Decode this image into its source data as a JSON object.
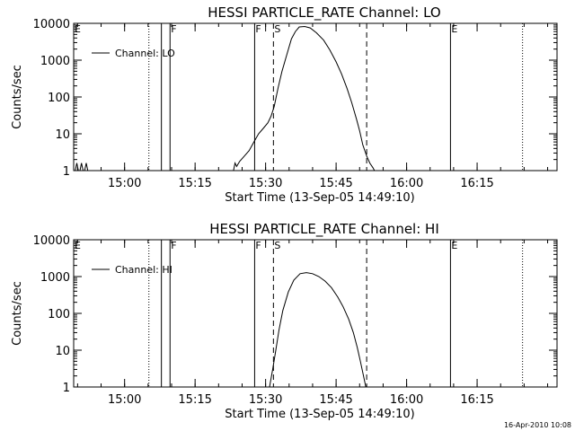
{
  "footer_stamp": "16-Apr-2010 10:08",
  "chart_data": [
    {
      "type": "line",
      "title": "HESSI PARTICLE_RATE Channel: LO",
      "xlabel": "Start Time (13-Sep-05 14:49:10)",
      "ylabel": "Counts/sec",
      "y_scale": "log",
      "ylim": [
        1,
        10000
      ],
      "xlim": [
        "14:49:10",
        "16:32:00"
      ],
      "x_ticks": [
        "15:00",
        "15:15",
        "15:30",
        "15:45",
        "16:00",
        "16:15"
      ],
      "y_ticks": [
        "1",
        "10",
        "100",
        "1000",
        "10000"
      ],
      "legend": {
        "label": "Channel: LO",
        "placement": "top-left"
      },
      "markers": [
        {
          "label": "E",
          "time": "14:49:10",
          "style": "solid"
        },
        {
          "label": "",
          "time": "15:05:10",
          "style": "dotted"
        },
        {
          "label": "",
          "time": "15:07:50",
          "style": "solid"
        },
        {
          "label": "F",
          "time": "15:09:40",
          "style": "solid"
        },
        {
          "label": "F",
          "time": "15:27:40",
          "style": "solid"
        },
        {
          "label": "S",
          "time": "15:31:40",
          "style": "dashed"
        },
        {
          "label": "",
          "time": "15:51:30",
          "style": "dashed"
        },
        {
          "label": "E",
          "time": "16:09:20",
          "style": "solid"
        },
        {
          "label": "",
          "time": "16:24:40",
          "style": "dotted"
        }
      ],
      "series": [
        {
          "x": [
            "14:49:30",
            "14:49:50",
            "14:50:10",
            "14:50:30",
            "14:50:50",
            "14:51:10",
            "14:51:30",
            "14:51:50",
            "14:52:10",
            "15:23:10",
            "15:23:30",
            "15:23:50",
            "15:24:30",
            "15:25:30",
            "15:26:30",
            "15:27:30",
            "15:28:30",
            "15:29:30",
            "15:30:30",
            "15:31:10",
            "15:31:50",
            "15:32:40",
            "15:33:30",
            "15:34:30",
            "15:35:30",
            "15:36:20",
            "15:37:10",
            "15:38:20",
            "15:39:30",
            "15:40:50",
            "15:42:20",
            "15:43:40",
            "15:45:00",
            "15:46:10",
            "15:47:20",
            "15:48:20",
            "15:49:20",
            "15:50:00",
            "15:50:40",
            "15:51:30",
            "15:52:10",
            "15:52:50",
            "15:53:10"
          ],
          "y": [
            1,
            1.6,
            1,
            1,
            1.6,
            1,
            1,
            1.6,
            1,
            1,
            1.6,
            1.3,
            1.8,
            2.5,
            3.5,
            6,
            10,
            14,
            20,
            30,
            55,
            180,
            500,
            1400,
            3800,
            6000,
            8000,
            8200,
            7500,
            5500,
            3500,
            1900,
            900,
            420,
            170,
            70,
            25,
            12,
            5,
            2.5,
            1.6,
            1.2,
            1
          ]
        }
      ]
    },
    {
      "type": "line",
      "title": "HESSI PARTICLE_RATE Channel: HI",
      "xlabel": "Start Time (13-Sep-05 14:49:10)",
      "ylabel": "Counts/sec",
      "y_scale": "log",
      "ylim": [
        1,
        10000
      ],
      "xlim": [
        "14:49:10",
        "16:32:00"
      ],
      "x_ticks": [
        "15:00",
        "15:15",
        "15:30",
        "15:45",
        "16:00",
        "16:15"
      ],
      "y_ticks": [
        "1",
        "10",
        "100",
        "1000",
        "10000"
      ],
      "legend": {
        "label": "Channel: HI",
        "placement": "top-left"
      },
      "markers": [
        {
          "label": "E",
          "time": "14:49:10",
          "style": "solid"
        },
        {
          "label": "",
          "time": "15:05:10",
          "style": "dotted"
        },
        {
          "label": "",
          "time": "15:07:50",
          "style": "solid"
        },
        {
          "label": "F",
          "time": "15:09:40",
          "style": "solid"
        },
        {
          "label": "F",
          "time": "15:27:40",
          "style": "solid"
        },
        {
          "label": "S",
          "time": "15:31:40",
          "style": "dashed"
        },
        {
          "label": "",
          "time": "15:51:30",
          "style": "dashed"
        },
        {
          "label": "E",
          "time": "16:09:20",
          "style": "solid"
        },
        {
          "label": "",
          "time": "16:24:40",
          "style": "dotted"
        }
      ],
      "series": [
        {
          "x": [
            "15:30:50",
            "15:31:30",
            "15:32:10",
            "15:32:50",
            "15:33:40",
            "15:34:50",
            "15:36:00",
            "15:37:20",
            "15:38:40",
            "15:40:00",
            "15:41:20",
            "15:42:40",
            "15:44:00",
            "15:45:20",
            "15:46:30",
            "15:47:40",
            "15:48:40",
            "15:49:30",
            "15:50:10",
            "15:50:50",
            "15:51:20"
          ],
          "y": [
            1,
            3,
            10,
            35,
            120,
            380,
            800,
            1200,
            1280,
            1200,
            1000,
            750,
            500,
            280,
            150,
            70,
            30,
            12,
            5,
            2,
            1
          ]
        }
      ]
    }
  ]
}
